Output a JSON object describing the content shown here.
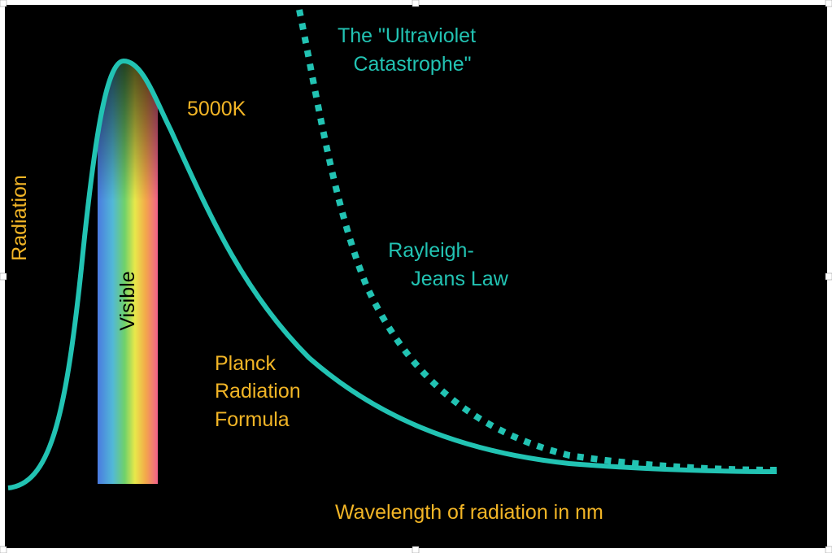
{
  "labels": {
    "ultraviolet": [
      "The \"Ultraviolet",
      "Catastrophe\""
    ],
    "temperature": "5000K",
    "y_axis": "Radiation",
    "visible": "Visible",
    "rayleigh_jeans": [
      "Rayleigh-",
      "Jeans Law"
    ],
    "planck": [
      "Planck",
      "Radiation",
      "Formula"
    ],
    "x_axis": "Wavelength of radiation in nm"
  }
}
